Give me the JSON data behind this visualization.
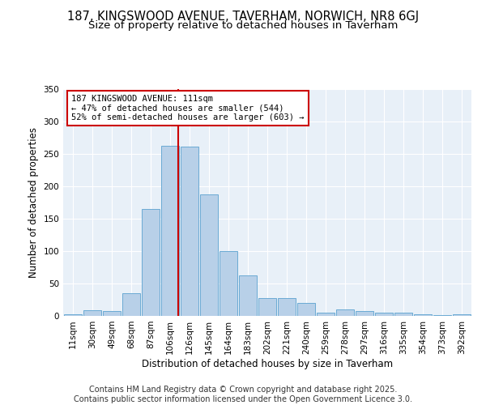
{
  "title1": "187, KINGSWOOD AVENUE, TAVERHAM, NORWICH, NR8 6GJ",
  "title2": "Size of property relative to detached houses in Taverham",
  "xlabel": "Distribution of detached houses by size in Taverham",
  "ylabel": "Number of detached properties",
  "categories": [
    "11sqm",
    "30sqm",
    "49sqm",
    "68sqm",
    "87sqm",
    "106sqm",
    "126sqm",
    "145sqm",
    "164sqm",
    "183sqm",
    "202sqm",
    "221sqm",
    "240sqm",
    "259sqm",
    "278sqm",
    "297sqm",
    "316sqm",
    "335sqm",
    "354sqm",
    "373sqm",
    "392sqm"
  ],
  "values": [
    2,
    9,
    8,
    35,
    165,
    263,
    261,
    187,
    100,
    62,
    28,
    28,
    20,
    5,
    10,
    7,
    5,
    5,
    2,
    1,
    3
  ],
  "bar_color": "#b8d0e8",
  "bar_edge_color": "#6aaad4",
  "vline_color": "#cc0000",
  "annotation_text": "187 KINGSWOOD AVENUE: 111sqm\n← 47% of detached houses are smaller (544)\n52% of semi-detached houses are larger (603) →",
  "annotation_box_color": "#ffffff",
  "annotation_box_edge": "#cc0000",
  "ylim": [
    0,
    350
  ],
  "yticks": [
    0,
    50,
    100,
    150,
    200,
    250,
    300,
    350
  ],
  "footer_text": "Contains HM Land Registry data © Crown copyright and database right 2025.\nContains public sector information licensed under the Open Government Licence 3.0.",
  "fig_bg_color": "#ffffff",
  "plot_bg_color": "#e8f0f8",
  "title_fontsize": 10.5,
  "subtitle_fontsize": 9.5,
  "tick_fontsize": 7.5,
  "label_fontsize": 8.5,
  "footer_fontsize": 7,
  "annotation_fontsize": 7.5,
  "vline_x": 5.42
}
